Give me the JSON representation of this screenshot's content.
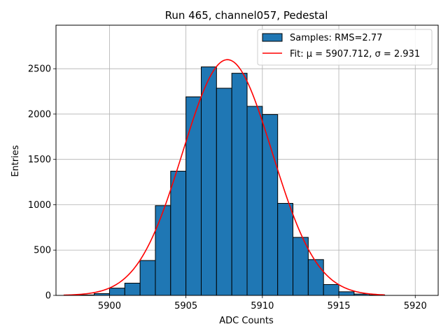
{
  "chart_data": {
    "type": "bar",
    "title": "Run 465, channel057, Pedestal",
    "xlabel": "ADC Counts",
    "ylabel": "Entries",
    "xlim": [
      5896.5,
      5921.5
    ],
    "ylim": [
      0,
      2980
    ],
    "grid": true,
    "legend_position": "top-right",
    "xticks": [
      5900,
      5905,
      5910,
      5915,
      5920
    ],
    "yticks": [
      0,
      500,
      1000,
      1500,
      2000,
      2500
    ],
    "bin_width": 1,
    "bins": [
      {
        "x0": 5898,
        "value": 5
      },
      {
        "x0": 5899,
        "value": 20
      },
      {
        "x0": 5900,
        "value": 80
      },
      {
        "x0": 5901,
        "value": 135
      },
      {
        "x0": 5902,
        "value": 385
      },
      {
        "x0": 5903,
        "value": 990
      },
      {
        "x0": 5904,
        "value": 1370
      },
      {
        "x0": 5905,
        "value": 2190
      },
      {
        "x0": 5906,
        "value": 2520
      },
      {
        "x0": 5907,
        "value": 2285
      },
      {
        "x0": 5908,
        "value": 2450
      },
      {
        "x0": 5909,
        "value": 2085
      },
      {
        "x0": 5910,
        "value": 1995
      },
      {
        "x0": 5911,
        "value": 1015
      },
      {
        "x0": 5912,
        "value": 640
      },
      {
        "x0": 5913,
        "value": 395
      },
      {
        "x0": 5914,
        "value": 120
      },
      {
        "x0": 5915,
        "value": 40
      },
      {
        "x0": 5916,
        "value": 15
      },
      {
        "x0": 5917,
        "value": 5
      }
    ],
    "fit": {
      "mu": 5907.712,
      "sigma": 2.931,
      "amplitude": 2600,
      "x_range": [
        5897,
        5918
      ]
    },
    "series": [
      {
        "name": "Samples: RMS=2.77",
        "kind": "histogram",
        "color": "#1f77b4"
      },
      {
        "name": "Fit: μ = 5907.712, σ = 2.931",
        "kind": "line",
        "color": "#ff0000"
      }
    ]
  }
}
